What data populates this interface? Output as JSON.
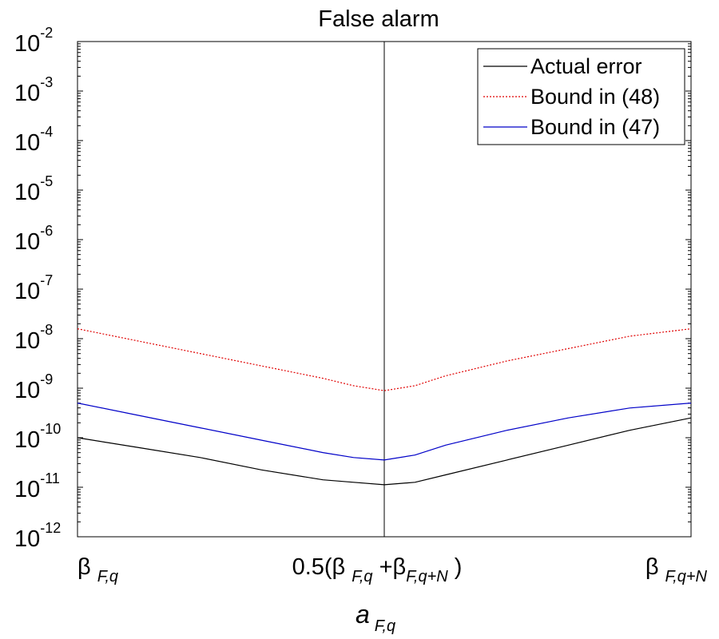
{
  "chart_data": {
    "type": "line",
    "title": "False alarm",
    "xlabel": {
      "main": "a",
      "sub": "F,q"
    },
    "x_ticks": [
      {
        "main": "β",
        "sub": "F,q",
        "tail": ""
      },
      {
        "main": "0.5(β",
        "sub": "F,q",
        "mid": " +β",
        "sub2": "F,q+N",
        "tail": " )"
      },
      {
        "main": "β",
        "sub": "F,q+N",
        "tail": ""
      }
    ],
    "y_ticks": [
      {
        "base": "10",
        "exp": "-2"
      },
      {
        "base": "10",
        "exp": "-3"
      },
      {
        "base": "10",
        "exp": "-4"
      },
      {
        "base": "10",
        "exp": "-5"
      },
      {
        "base": "10",
        "exp": "-6"
      },
      {
        "base": "10",
        "exp": "-7"
      },
      {
        "base": "10",
        "exp": "-8"
      },
      {
        "base": "10",
        "exp": "-9"
      },
      {
        "base": "10",
        "exp": "-10"
      },
      {
        "base": "10",
        "exp": "-11"
      },
      {
        "base": "10",
        "exp": "-12"
      }
    ],
    "ylim_log10": [
      -12,
      -2
    ],
    "xlim": [
      0,
      1
    ],
    "y_scale": "log",
    "grid": false,
    "center_vertical_line": 0.5,
    "legend_position": "top-right",
    "series": [
      {
        "name": "Actual error",
        "color": "#000000",
        "dash": "solid",
        "x": [
          0,
          0.1,
          0.2,
          0.3,
          0.4,
          0.45,
          0.5,
          0.55,
          0.6,
          0.7,
          0.8,
          0.9,
          1.0
        ],
        "log10_y": [
          -10.0,
          -10.2,
          -10.4,
          -10.65,
          -10.85,
          -10.9,
          -10.95,
          -10.9,
          -10.75,
          -10.45,
          -10.15,
          -9.85,
          -9.6
        ]
      },
      {
        "name": "Bound in (48)",
        "color": "#e00000",
        "dash": "dotted",
        "x": [
          0,
          0.1,
          0.2,
          0.3,
          0.4,
          0.45,
          0.5,
          0.55,
          0.6,
          0.7,
          0.8,
          0.9,
          1.0
        ],
        "log10_y": [
          -7.8,
          -8.05,
          -8.3,
          -8.55,
          -8.8,
          -8.95,
          -9.05,
          -8.95,
          -8.75,
          -8.45,
          -8.2,
          -7.95,
          -7.8
        ]
      },
      {
        "name": "Bound in (47)",
        "color": "#0000c8",
        "dash": "solid",
        "x": [
          0,
          0.1,
          0.2,
          0.3,
          0.4,
          0.45,
          0.5,
          0.55,
          0.6,
          0.7,
          0.8,
          0.9,
          1.0
        ],
        "log10_y": [
          -9.3,
          -9.55,
          -9.8,
          -10.05,
          -10.3,
          -10.4,
          -10.45,
          -10.35,
          -10.15,
          -9.85,
          -9.6,
          -9.4,
          -9.3
        ]
      }
    ]
  }
}
